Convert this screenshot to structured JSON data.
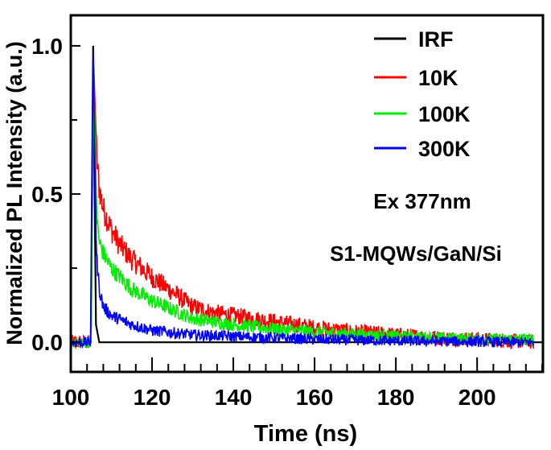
{
  "chart_data": {
    "type": "line",
    "xlabel": "Time (ns)",
    "ylabel": "Normalized PL Intensity (a.u.)",
    "xlim": [
      100,
      216.2
    ],
    "ylim": [
      -0.1,
      1.103
    ],
    "xticks": [
      100,
      120,
      140,
      160,
      180,
      200
    ],
    "xtick_labels": [
      "100",
      "120",
      "140",
      "160",
      "180",
      "200"
    ],
    "yticks": [
      0.0,
      0.5,
      1.0
    ],
    "ytick_labels": [
      "0.0",
      "0.5",
      "1.0"
    ],
    "grid": false,
    "legend_position": "top-right",
    "annotations": [
      "Ex 377nm",
      "S1-MQWs/GaN/Si"
    ],
    "series": [
      {
        "name": "IRF",
        "color": "#000000",
        "noise": 0,
        "points": [
          [
            100,
            0
          ],
          [
            104.9,
            0
          ],
          [
            105.5,
            1.0
          ],
          [
            106.2,
            0.06
          ],
          [
            107,
            0
          ],
          [
            216,
            0
          ]
        ]
      },
      {
        "name": "10K",
        "color": "#ff0000",
        "noise": 0.025,
        "points": [
          [
            100,
            0
          ],
          [
            105,
            0
          ],
          [
            105.6,
            0.95
          ],
          [
            106.5,
            0.6
          ],
          [
            107,
            0.52
          ],
          [
            108,
            0.45
          ],
          [
            110,
            0.38
          ],
          [
            112,
            0.33
          ],
          [
            115,
            0.28
          ],
          [
            120,
            0.22
          ],
          [
            125,
            0.17
          ],
          [
            130,
            0.12
          ],
          [
            135,
            0.1
          ],
          [
            140,
            0.09
          ],
          [
            150,
            0.07
          ],
          [
            160,
            0.05
          ],
          [
            170,
            0.035
          ],
          [
            180,
            0.025
          ],
          [
            190,
            0.015
          ],
          [
            200,
            0.01
          ],
          [
            214,
            0
          ]
        ]
      },
      {
        "name": "100K",
        "color": "#00ee00",
        "noise": 0.02,
        "points": [
          [
            100,
            0
          ],
          [
            105,
            0
          ],
          [
            105.6,
            0.9
          ],
          [
            106.5,
            0.4
          ],
          [
            107,
            0.34
          ],
          [
            108,
            0.3
          ],
          [
            110,
            0.25
          ],
          [
            115,
            0.18
          ],
          [
            120,
            0.14
          ],
          [
            125,
            0.11
          ],
          [
            130,
            0.08
          ],
          [
            140,
            0.06
          ],
          [
            150,
            0.045
          ],
          [
            160,
            0.035
          ],
          [
            180,
            0.02
          ],
          [
            200,
            0.01
          ],
          [
            214,
            0.01
          ]
        ]
      },
      {
        "name": "300K",
        "color": "#0000ff",
        "noise": 0.018,
        "points": [
          [
            100,
            0
          ],
          [
            104.9,
            0
          ],
          [
            105.5,
            1.0
          ],
          [
            106.3,
            0.3
          ],
          [
            107,
            0.18
          ],
          [
            108,
            0.12
          ],
          [
            110,
            0.09
          ],
          [
            115,
            0.06
          ],
          [
            120,
            0.04
          ],
          [
            130,
            0.025
          ],
          [
            140,
            0.02
          ],
          [
            160,
            0.01
          ],
          [
            180,
            0.005
          ],
          [
            214,
            0
          ]
        ]
      }
    ]
  }
}
